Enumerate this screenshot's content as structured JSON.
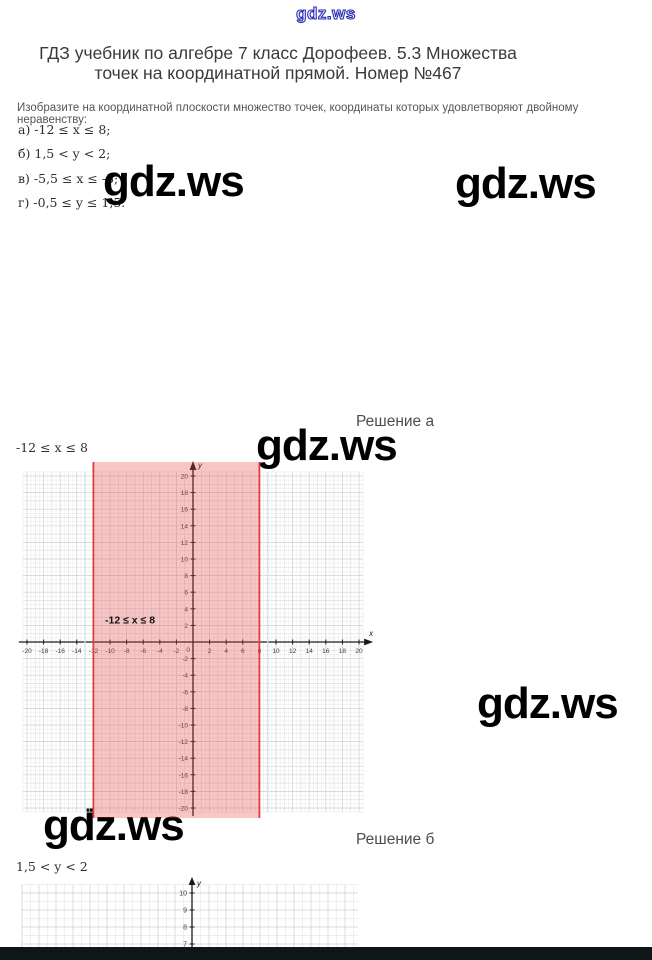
{
  "site": {
    "logo_text": "gdz.ws",
    "logo_color": "#2d2db4"
  },
  "header": {
    "title_line1": "ГДЗ учебник по алгебре 7 класс Дорофеев. 5.3 Множества",
    "title_line2": "точек на координатной прямой. Номер №467"
  },
  "problem": {
    "intro": "Изобразите на координатной плоскости множество точек, координаты которых удовлетворяют двойному неравенству:",
    "items": [
      {
        "text": "а) -12 ≤ x ≤ 8;"
      },
      {
        "text": "б) 1,5 < y < 2;"
      },
      {
        "text": "в) -5,5 ≤ x ≤ -5;"
      },
      {
        "text": "г) -0,5 ≤ y ≤ 1,5."
      }
    ]
  },
  "watermark": {
    "text": "gdz.ws",
    "color": "#000000"
  },
  "solutions": [
    {
      "heading": "Решение а",
      "expr": "-12 ≤ x ≤ 8"
    },
    {
      "heading": "Решение б",
      "expr": "1,5 < y < 2"
    }
  ],
  "footer": {
    "color": "#0e1619"
  },
  "chart_data": [
    {
      "type": "coordinate-plane",
      "title": "Решение а",
      "x_range": [
        -20,
        20
      ],
      "y_range": [
        -20,
        20
      ],
      "x_tick_step": 2,
      "y_tick_step": 2,
      "x_axis_label": "x",
      "y_axis_label": "y",
      "grid": "on",
      "shaded_region": {
        "kind": "vertical-band",
        "x_from": -12,
        "x_to": 8,
        "fill": "rgba(230,70,70,0.30)",
        "border_color": "#e23b3b"
      },
      "guide_lines": [
        {
          "axis": "x",
          "value": -13,
          "color": "#c5e8e4"
        },
        {
          "axis": "x",
          "value": 9,
          "color": "#c5e8e4"
        }
      ],
      "annotation": {
        "text": "-12 ≤ x ≤ 8",
        "x": -10.6,
        "y": 2.2
      }
    },
    {
      "type": "coordinate-plane",
      "title": "Решение б",
      "x_range": [
        -10,
        10
      ],
      "y_range": [
        -10,
        10
      ],
      "y_tick_step": 1,
      "y_axis_label": "y",
      "grid": "on",
      "visible_y_ticks": [
        10,
        9,
        8,
        7
      ],
      "clipped": "bottom portion cut off by page edge"
    }
  ]
}
